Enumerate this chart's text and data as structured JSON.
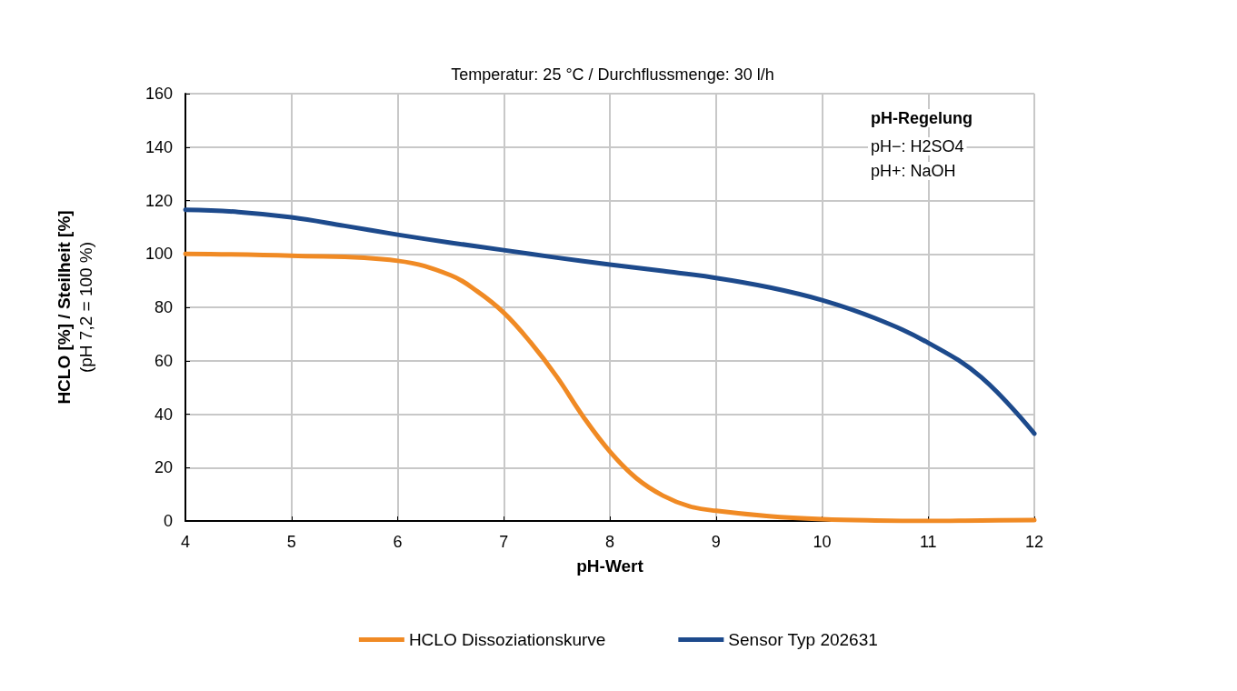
{
  "chart_data": {
    "type": "line",
    "title": "Temperatur: 25 °C / Durchflussmenge: 30 l/h",
    "xlabel": "pH-Wert",
    "ylabel": "HCLO [%] / Steilheit [%]\n(pH 7,2 = 100 %)",
    "annotations": [
      "pH-Regelung",
      "pH−: H2SO4",
      "pH+: NaOH"
    ],
    "series": [
      {
        "name": "HCLO Dissoziationskurve",
        "color": "#f08a24",
        "x": [
          4,
          5,
          6,
          6.5,
          6.75,
          7,
          7.25,
          7.5,
          7.75,
          8,
          8.25,
          8.5,
          8.75,
          9,
          9.5,
          10,
          10.5,
          11,
          11.5,
          12
        ],
        "values": [
          100,
          99.3,
          97.4,
          92,
          86,
          78,
          67,
          54,
          39,
          26,
          16,
          9.5,
          5.5,
          3.8,
          1.8,
          0.7,
          0.2,
          0,
          0.2,
          0.3
        ]
      },
      {
        "name": "Sensor Typ 202631",
        "color": "#1d4a8c",
        "x": [
          4,
          4.5,
          5,
          5.5,
          6,
          6.5,
          7,
          7.5,
          8,
          8.5,
          9,
          9.5,
          10,
          10.5,
          11,
          11.5,
          12
        ],
        "values": [
          116.5,
          115.7,
          113.7,
          110.5,
          107.2,
          104.2,
          101.4,
          98.6,
          96,
          93.6,
          91,
          87.5,
          82.7,
          75.9,
          66.7,
          53.8,
          32.7
        ]
      }
    ],
    "xlim": [
      4,
      12
    ],
    "xticks": [
      4,
      5,
      6,
      7,
      8,
      9,
      10,
      11,
      12
    ],
    "ylim": [
      0,
      160
    ],
    "yticks": [
      0,
      20,
      40,
      60,
      80,
      100,
      120,
      140,
      160
    ],
    "grid": true,
    "legend": "bottom",
    "marker": "none",
    "line_style": "solid"
  }
}
